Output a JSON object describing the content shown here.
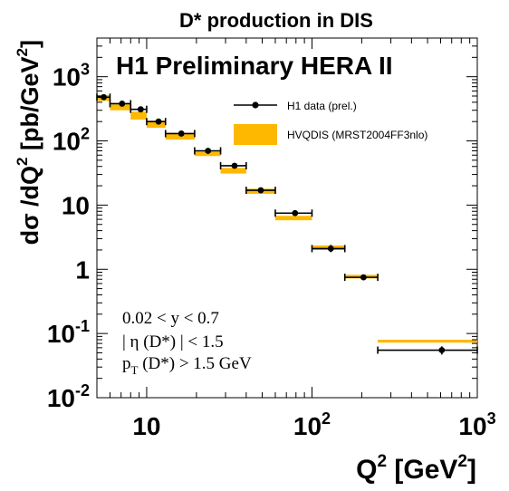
{
  "chart_data": {
    "type": "scatter",
    "title": "D* production in DIS",
    "watermark": "H1 Preliminary HERA II",
    "xlabel": {
      "main": "Q",
      "sup": "2",
      "unit_open": " [GeV",
      "unit_sup": "2",
      "unit_close": "]"
    },
    "ylabel": {
      "main": "dσ /dQ",
      "sup": "2",
      "unit_open": " [pb/GeV",
      "unit_sup": "2",
      "unit_close": "]"
    },
    "x_scale": "log",
    "y_scale": "log",
    "xlim": [
      5,
      1000
    ],
    "ylim": [
      0.01,
      4000
    ],
    "x_ticks": [
      {
        "value": 10,
        "base": "10",
        "exp": ""
      },
      {
        "value": 100,
        "base": "10",
        "exp": "2"
      },
      {
        "value": 1000,
        "base": "10",
        "exp": "3"
      }
    ],
    "y_ticks": [
      {
        "value": 0.01,
        "base": "10",
        "exp": "-2"
      },
      {
        "value": 0.1,
        "base": "10",
        "exp": "-1"
      },
      {
        "value": 1,
        "base": "1",
        "exp": ""
      },
      {
        "value": 10,
        "base": "10",
        "exp": ""
      },
      {
        "value": 100,
        "base": "10",
        "exp": "2"
      },
      {
        "value": 1000,
        "base": "10",
        "exp": "3"
      }
    ],
    "series": [
      {
        "name": "H1 data (prel.)",
        "kind": "points",
        "color": "#000000",
        "points": [
          {
            "x": 5.5,
            "xlo": 5,
            "xhi": 6,
            "y": 480,
            "ylo": 440,
            "yhi": 525
          },
          {
            "x": 7.1,
            "xlo": 6,
            "xhi": 8,
            "y": 380,
            "ylo": 355,
            "yhi": 405
          },
          {
            "x": 9.2,
            "xlo": 8,
            "xhi": 10,
            "y": 310,
            "ylo": 290,
            "yhi": 330
          },
          {
            "x": 11.8,
            "xlo": 10,
            "xhi": 13,
            "y": 200,
            "ylo": 188,
            "yhi": 212
          },
          {
            "x": 16.2,
            "xlo": 13,
            "xhi": 19.5,
            "y": 130,
            "ylo": 123,
            "yhi": 138
          },
          {
            "x": 23.5,
            "xlo": 19.5,
            "xhi": 28,
            "y": 70,
            "ylo": 66,
            "yhi": 74
          },
          {
            "x": 34,
            "xlo": 28,
            "xhi": 40,
            "y": 41,
            "ylo": 38.5,
            "yhi": 43.5
          },
          {
            "x": 49,
            "xlo": 40,
            "xhi": 60,
            "y": 17,
            "ylo": 16,
            "yhi": 18
          },
          {
            "x": 79,
            "xlo": 60,
            "xhi": 100,
            "y": 7.5,
            "ylo": 7.0,
            "yhi": 8.0
          },
          {
            "x": 130,
            "xlo": 100,
            "xhi": 158,
            "y": 2.1,
            "ylo": 1.85,
            "yhi": 2.4
          },
          {
            "x": 205,
            "xlo": 158,
            "xhi": 250,
            "y": 0.75,
            "ylo": 0.68,
            "yhi": 0.82
          },
          {
            "x": 610,
            "xlo": 250,
            "xhi": 1000,
            "y": 0.055,
            "ylo": 0.047,
            "yhi": 0.063
          }
        ]
      },
      {
        "name": "HVQDIS (MRST2004FF3nlo)",
        "kind": "band",
        "color": "#ffb800",
        "bins": [
          {
            "xlo": 5,
            "xhi": 6,
            "ylo": 420,
            "yhi": 520
          },
          {
            "xlo": 6,
            "xhi": 8,
            "ylo": 300,
            "yhi": 370
          },
          {
            "xlo": 8,
            "xhi": 10,
            "ylo": 215,
            "yhi": 285
          },
          {
            "xlo": 10,
            "xhi": 13,
            "ylo": 160,
            "yhi": 195
          },
          {
            "xlo": 13,
            "xhi": 19.5,
            "ylo": 105,
            "yhi": 128
          },
          {
            "xlo": 19.5,
            "xhi": 28,
            "ylo": 58,
            "yhi": 68
          },
          {
            "xlo": 28,
            "xhi": 40,
            "ylo": 31,
            "yhi": 38
          },
          {
            "xlo": 40,
            "xhi": 60,
            "ylo": 15,
            "yhi": 18
          },
          {
            "xlo": 60,
            "xhi": 100,
            "ylo": 5.8,
            "yhi": 6.8
          },
          {
            "xlo": 100,
            "xhi": 158,
            "ylo": 2.0,
            "yhi": 2.35
          },
          {
            "xlo": 158,
            "xhi": 250,
            "ylo": 0.72,
            "yhi": 0.82
          },
          {
            "xlo": 250,
            "xhi": 1000,
            "ylo": 0.072,
            "yhi": 0.08
          }
        ]
      }
    ],
    "legend_position": "top-right",
    "annotations": [
      {
        "parts": [
          {
            "t": "0.02 < y < 0.7"
          }
        ]
      },
      {
        "parts": [
          {
            "t": "| η (D*) | < 1.5"
          }
        ]
      },
      {
        "parts": [
          {
            "t": "p"
          },
          {
            "t": "T",
            "sub": true
          },
          {
            "t": " (D*) > 1.5 GeV"
          }
        ]
      }
    ],
    "grid": false
  }
}
